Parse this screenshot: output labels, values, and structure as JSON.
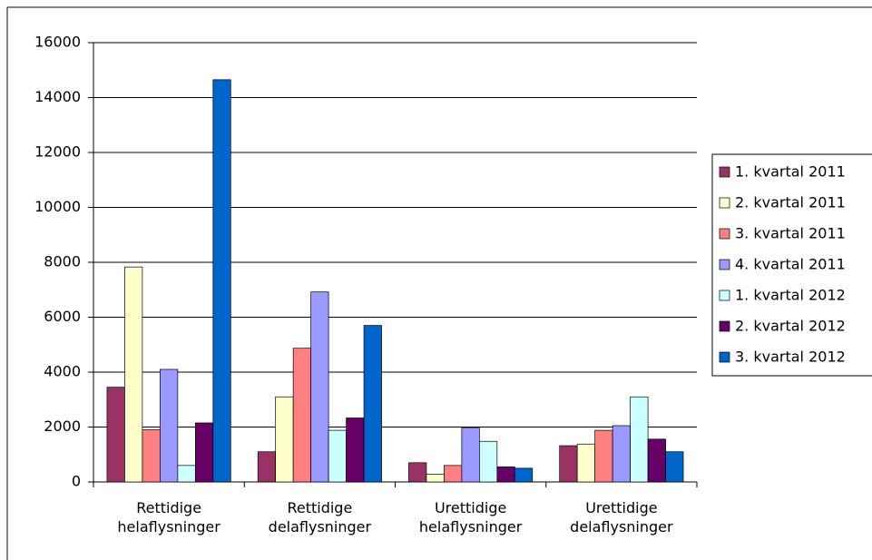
{
  "chart_data": {
    "type": "bar",
    "categories": [
      "Rettidige helaflysninger",
      "Rettidige delaflysninger",
      "Urettidige helaflysninger",
      "Urettidige delaflysninger"
    ],
    "series": [
      {
        "name": "1. kvartal 2011",
        "color": "#993366",
        "values": [
          3450,
          1100,
          700,
          1320
        ]
      },
      {
        "name": "2. kvartal 2011",
        "color": "#ffffcc",
        "values": [
          7830,
          3100,
          280,
          1380
        ]
      },
      {
        "name": "3. kvartal 2011",
        "color": "#ff8080",
        "values": [
          1900,
          4870,
          600,
          1880
        ]
      },
      {
        "name": "4. kvartal 2011",
        "color": "#9999ff",
        "values": [
          4100,
          6920,
          1980,
          2050
        ]
      },
      {
        "name": "1. kvartal 2012",
        "color": "#ccffff",
        "values": [
          600,
          1880,
          1480,
          3100
        ]
      },
      {
        "name": "2. kvartal 2012",
        "color": "#660066",
        "values": [
          2150,
          2330,
          550,
          1560
        ]
      },
      {
        "name": "3. kvartal 2012",
        "color": "#0066cc",
        "values": [
          14650,
          5700,
          500,
          1100
        ]
      }
    ],
    "ylim": [
      0,
      16000
    ],
    "yticks": [
      0,
      2000,
      4000,
      6000,
      8000,
      10000,
      12000,
      14000,
      16000
    ],
    "grid": true,
    "legend": "right"
  }
}
